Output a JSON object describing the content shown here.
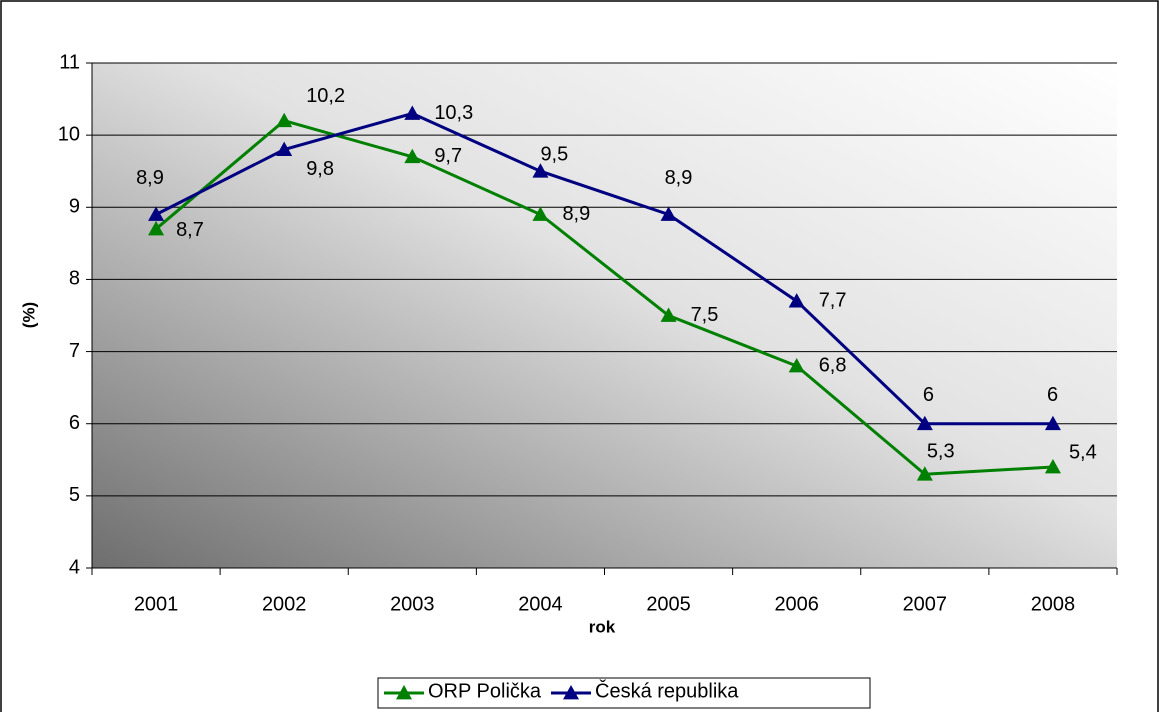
{
  "chart_data": {
    "type": "line",
    "categories": [
      "2001",
      "2002",
      "2003",
      "2004",
      "2005",
      "2006",
      "2007",
      "2008"
    ],
    "series": [
      {
        "name": "ORP Polička",
        "color": "#008000",
        "values": [
          8.7,
          10.2,
          9.7,
          8.9,
          7.5,
          6.8,
          5.3,
          5.4
        ],
        "value_labels": [
          "8,7",
          "10,2",
          "9,7",
          "8,9",
          "7,5",
          "6,8",
          "5,3",
          "5,4"
        ]
      },
      {
        "name": "Česká republika",
        "color": "#000080",
        "values": [
          8.9,
          9.8,
          10.3,
          9.5,
          8.9,
          7.7,
          6,
          6
        ],
        "value_labels": [
          "8,9",
          "9,8",
          "10,3",
          "9,5",
          "8,9",
          "7,7",
          "6",
          "6"
        ]
      }
    ],
    "xlabel": "rok",
    "ylabel": "(%)",
    "ylim": [
      4,
      11
    ],
    "yticks": [
      4,
      5,
      6,
      7,
      8,
      9,
      10,
      11
    ],
    "grid": true,
    "legend": "bottom"
  }
}
